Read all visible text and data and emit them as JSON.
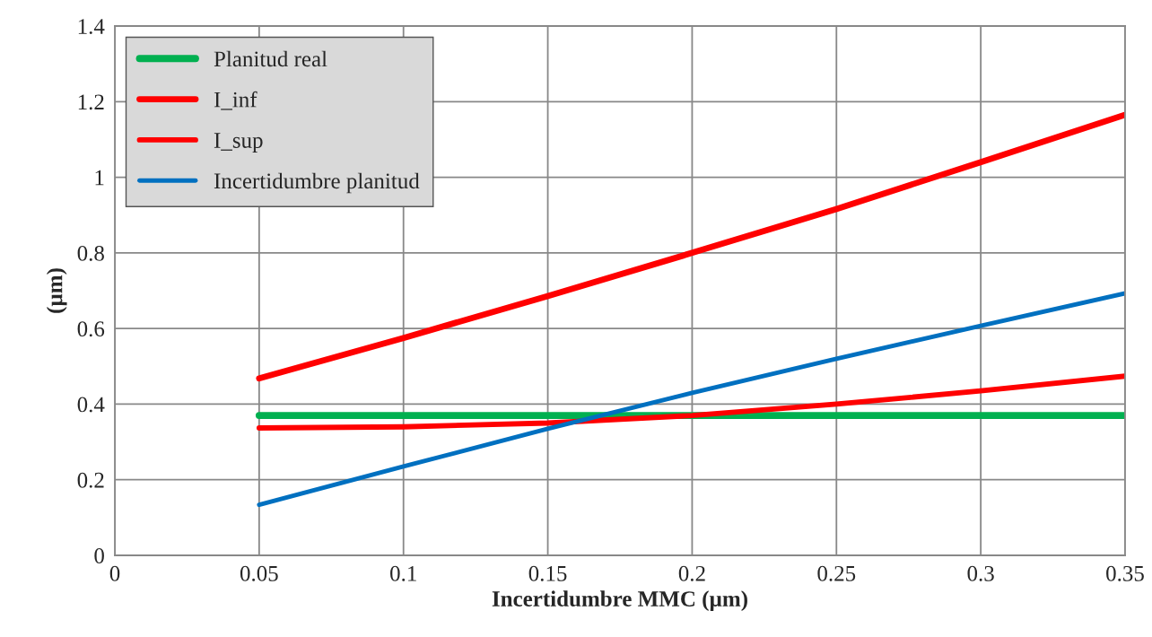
{
  "chart_data": {
    "type": "line",
    "xlabel": "Incertidumbre MMC (µm)",
    "ylabel": "(µm)",
    "x": [
      0.05,
      0.1,
      0.15,
      0.2,
      0.25,
      0.3,
      0.35
    ],
    "series": [
      {
        "name": "Planitud real",
        "color": "#00b050",
        "values": [
          0.37,
          0.37,
          0.37,
          0.37,
          0.37,
          0.37,
          0.37
        ]
      },
      {
        "name": "I_inf",
        "color": "#ff0000",
        "values": [
          0.468,
          0.575,
          0.686,
          0.8,
          0.916,
          1.04,
          1.165
        ]
      },
      {
        "name": "I_sup",
        "color": "#ff0000",
        "values": [
          0.337,
          0.34,
          0.35,
          0.37,
          0.4,
          0.435,
          0.474
        ]
      },
      {
        "name": "Incertidumbre planitud",
        "color": "#0070c0",
        "values": [
          0.134,
          0.235,
          0.335,
          0.43,
          0.52,
          0.607,
          0.693
        ]
      }
    ],
    "xlim": [
      0,
      0.35
    ],
    "xticks": [
      0,
      0.05,
      0.1,
      0.15,
      0.2,
      0.25,
      0.3,
      0.35
    ],
    "ylim": [
      0,
      1.4
    ],
    "yticks": [
      0,
      0.2,
      0.4,
      0.6,
      0.8,
      1,
      1.2,
      1.4
    ],
    "grid": true,
    "legend": "top left",
    "marker": "none",
    "line_style": "solid"
  }
}
